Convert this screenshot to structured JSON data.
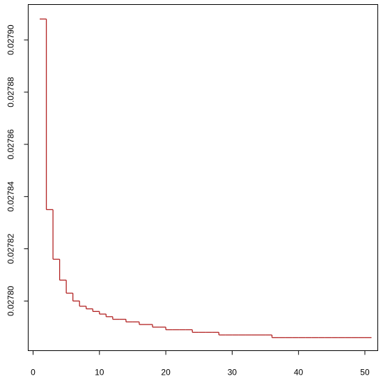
{
  "chart_data": {
    "type": "line",
    "title": "",
    "xlabel": "",
    "ylabel": "",
    "xlim": [
      0,
      51
    ],
    "ylim": [
      0.027785,
      0.027909
    ],
    "x_ticks": [
      0,
      10,
      20,
      30,
      40,
      50
    ],
    "x_tick_labels": [
      "0",
      "10",
      "20",
      "30",
      "40",
      "50"
    ],
    "y_ticks": [
      0.0278,
      0.02782,
      0.02784,
      0.02786,
      0.02788,
      0.0279
    ],
    "y_tick_labels": [
      "0.02780",
      "0.02782",
      "0.02784",
      "0.02786",
      "0.02788",
      "0.02790"
    ],
    "grid": false,
    "series": [
      {
        "color": "#b22222",
        "step": true,
        "x": [
          1,
          2,
          3,
          4,
          5,
          6,
          7,
          8,
          9,
          10,
          11,
          12,
          13,
          14,
          15,
          16,
          17,
          18,
          19,
          20,
          21,
          22,
          23,
          24,
          25,
          26,
          27,
          28,
          29,
          30,
          31,
          32,
          33,
          34,
          35,
          36,
          37,
          38,
          39,
          40,
          41,
          42,
          43,
          44,
          45,
          46,
          47,
          48,
          49,
          50,
          51
        ],
        "y": [
          0.027908,
          0.027835,
          0.027816,
          0.027808,
          0.027803,
          0.0278,
          0.027798,
          0.027797,
          0.027796,
          0.027795,
          0.027794,
          0.027793,
          0.027793,
          0.027792,
          0.027792,
          0.027791,
          0.027791,
          0.02779,
          0.02779,
          0.027789,
          0.027789,
          0.027789,
          0.027789,
          0.027788,
          0.027788,
          0.027788,
          0.027788,
          0.027787,
          0.027787,
          0.027787,
          0.027787,
          0.027787,
          0.027787,
          0.027787,
          0.027787,
          0.027786,
          0.027786,
          0.027786,
          0.027786,
          0.027786,
          0.027786,
          0.027786,
          0.027786,
          0.027786,
          0.027786,
          0.027786,
          0.027786,
          0.027786,
          0.027786,
          0.027786,
          0.027786
        ]
      }
    ]
  }
}
